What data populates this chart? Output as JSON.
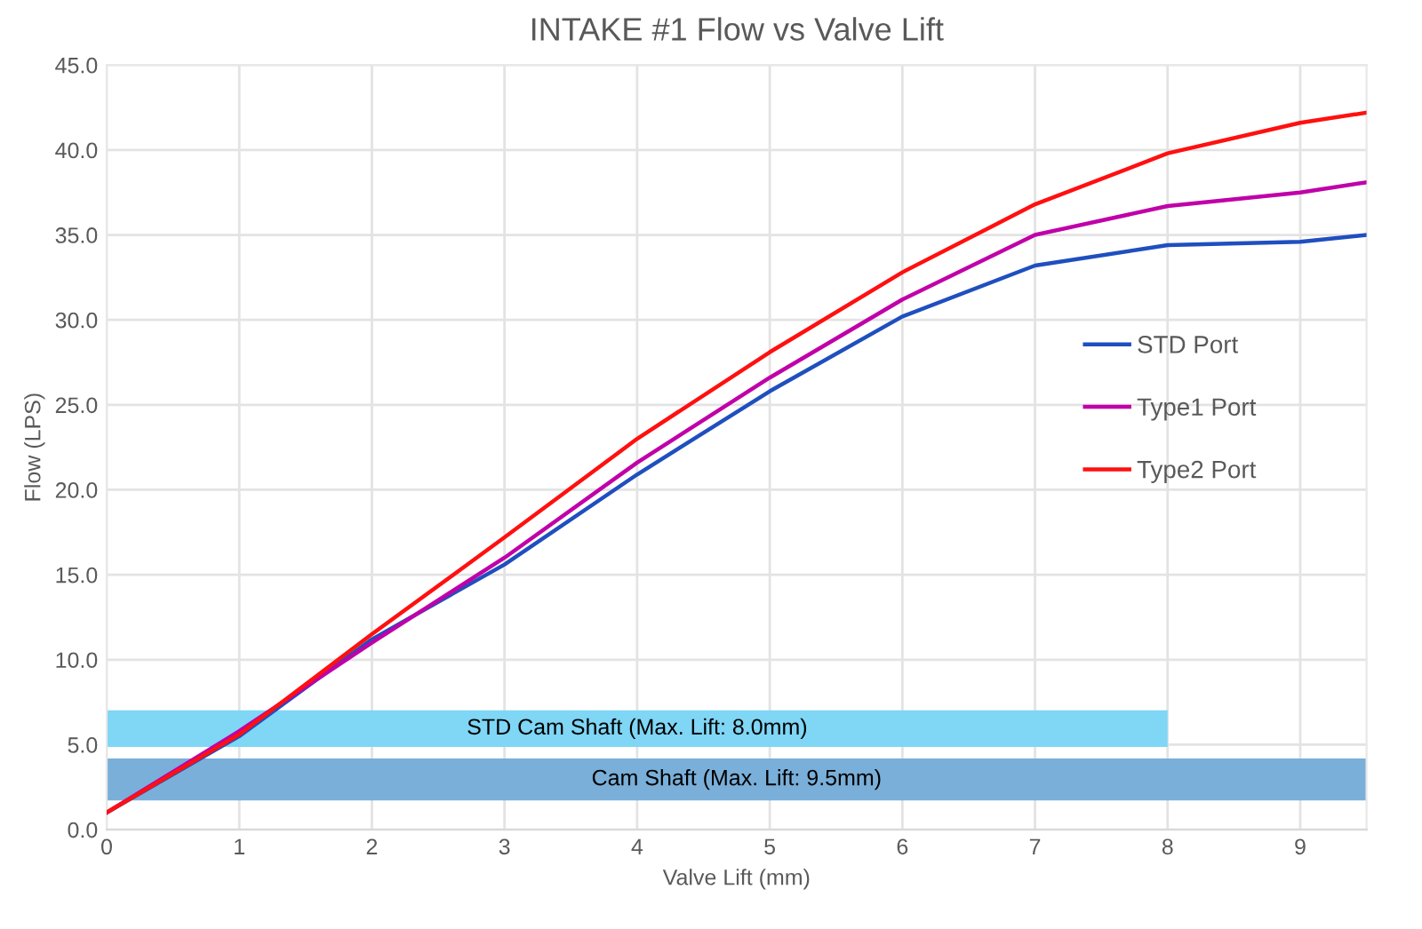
{
  "chart_data": {
    "type": "line",
    "title": "INTAKE #1 Flow vs Valve Lift",
    "xlabel": "Valve Lift (mm)",
    "ylabel": "Flow (LPS)",
    "x": [
      0,
      1,
      2,
      3,
      4,
      5,
      6,
      7,
      8,
      9,
      9.5
    ],
    "series": [
      {
        "name": "STD Port",
        "color": "#1f4fbf",
        "values": [
          1.0,
          5.5,
          11.2,
          15.6,
          20.9,
          25.8,
          30.2,
          33.2,
          34.4,
          34.6,
          35.0
        ]
      },
      {
        "name": "Type1 Port",
        "color": "#c000a8",
        "values": [
          1.0,
          5.8,
          11.0,
          16.0,
          21.6,
          26.6,
          31.2,
          35.0,
          36.7,
          37.5,
          38.1
        ]
      },
      {
        "name": "Type2 Port",
        "color": "#ff1010",
        "values": [
          1.0,
          5.6,
          11.5,
          17.2,
          23.0,
          28.1,
          32.8,
          36.8,
          39.8,
          41.6,
          42.2
        ]
      }
    ],
    "bands": [
      {
        "axis": "x",
        "from": 0,
        "to": 8,
        "label": "STD Cam Shaft (Max. Lift: 8.0mm)",
        "color": "#7fd6f5"
      },
      {
        "axis": "x",
        "from": 0,
        "to": 9.5,
        "label": "Cam Shaft (Max. Lift: 9.5mm)",
        "color": "#7aafd9"
      }
    ],
    "xlim": [
      0,
      9.5
    ],
    "xticks": [
      0,
      1,
      2,
      3,
      4,
      5,
      6,
      7,
      8,
      9
    ],
    "ylim": [
      0,
      45
    ],
    "yticks": [
      {
        "value": 0,
        "label": "0.0"
      },
      {
        "value": 5,
        "label": "5.0"
      },
      {
        "value": 10,
        "label": "10.0"
      },
      {
        "value": 15,
        "label": "15.0"
      },
      {
        "value": 20,
        "label": "20.0"
      },
      {
        "value": 25,
        "label": "25.0"
      },
      {
        "value": 30,
        "label": "30.0"
      },
      {
        "value": 35,
        "label": "35.0"
      },
      {
        "value": 40,
        "label": "40.0"
      },
      {
        "value": 45,
        "label": "45.0"
      }
    ],
    "grid": true,
    "legend": "right",
    "marker": "none",
    "line_style": "solid"
  }
}
